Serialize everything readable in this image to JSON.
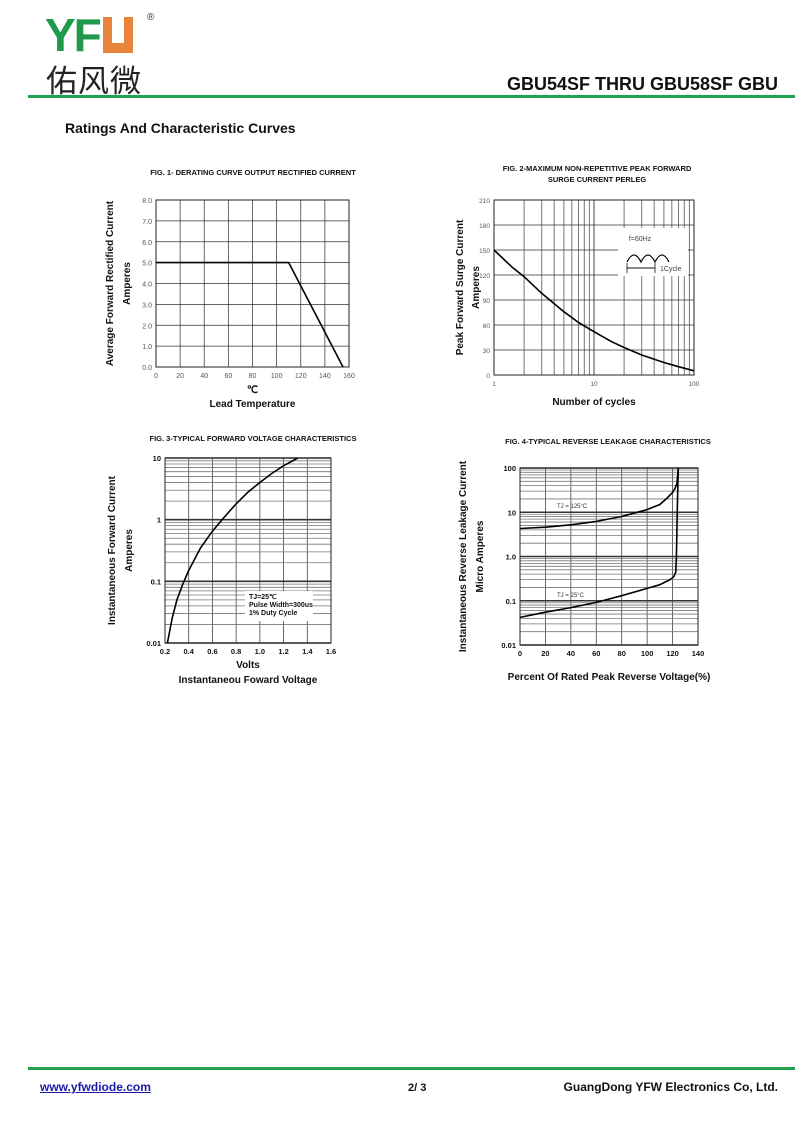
{
  "header": {
    "logo_latin": "YFW",
    "logo_registered": "®",
    "logo_chinese": "佑风微",
    "title": "GBU54SF THRU GBU58SF GBU"
  },
  "section_title": "Ratings And  Characteristic Curves",
  "footer": {
    "website": "www.yfwdiode.com",
    "page": "2/ 3",
    "company": "GuangDong YFW Electronics Co, Ltd."
  },
  "colors": {
    "brand_green": "#22a04f",
    "brand_orange": "#e8833a",
    "link": "#1a1aa8"
  },
  "chart_data": [
    {
      "type": "line",
      "title": [
        "FIG. 1- DERATING CURVE OUTPUT RECTIFIED CURRENT"
      ],
      "ylabel": [
        "Average Forward Rectified Current",
        "Amperes"
      ],
      "xlabel": [
        "℃",
        "Lead Temperature"
      ],
      "xscale": "linear",
      "yscale": "linear",
      "xlim": [
        0,
        160
      ],
      "ylim": [
        0,
        8
      ],
      "xticks": [
        "0",
        "20",
        "40",
        "60",
        "80",
        "100",
        "120",
        "140",
        "160"
      ],
      "yticks": [
        "0.0",
        "1.0",
        "2.0",
        "3.0",
        "4.0",
        "5.0",
        "6.0",
        "7.0",
        "8.0"
      ],
      "grid": true,
      "series": [
        {
          "name": "derating",
          "x": [
            0,
            110,
            155
          ],
          "y": [
            5,
            5,
            0
          ]
        }
      ],
      "annotations": []
    },
    {
      "type": "line",
      "title": [
        "FIG. 2-MAXIMUM NON-REPETITIVE PEAK FORWARD",
        "SURGE CURRENT PERLEG"
      ],
      "ylabel": [
        "Peak Forward Surge Current",
        "Amperes"
      ],
      "xlabel": [
        "Number of cycles"
      ],
      "xscale": "log",
      "yscale": "linear",
      "xlim": [
        1,
        100
      ],
      "ylim": [
        0,
        210
      ],
      "xticks": [
        "1",
        "10",
        "100"
      ],
      "yticks": [
        "0",
        "30",
        "60",
        "90",
        "120",
        "150",
        "180",
        "210"
      ],
      "grid": true,
      "series": [
        {
          "name": "surge",
          "x": [
            1,
            1.5,
            2,
            3,
            5,
            7,
            10,
            15,
            20,
            30,
            50,
            70,
            100
          ],
          "y": [
            150,
            130,
            118,
            98,
            76,
            63,
            52,
            40,
            33,
            24,
            15,
            10,
            5
          ]
        }
      ],
      "annotations": [
        "f=60Hz",
        "1Cycle"
      ]
    },
    {
      "type": "line",
      "title": [
        "FIG. 3-TYPICAL FORWARD VOLTAGE CHARACTERISTICS"
      ],
      "ylabel": [
        "Instantaneous Forward Current",
        "Amperes"
      ],
      "xlabel": [
        "Volts",
        "Instantaneou Foward Voltage"
      ],
      "xscale": "linear",
      "yscale": "log",
      "xlim": [
        0.2,
        1.6
      ],
      "ylim": [
        0.01,
        10
      ],
      "xticks": [
        "0.2",
        "0.4",
        "0.6",
        "0.8",
        "1.0",
        "1.2",
        "1.4",
        "1.6"
      ],
      "yticks": [
        "0.01",
        "0.1",
        "1",
        "10"
      ],
      "grid": true,
      "series": [
        {
          "name": "Tj=25C",
          "x": [
            0.22,
            0.26,
            0.3,
            0.35,
            0.4,
            0.5,
            0.6,
            0.7,
            0.8,
            0.9,
            1.0,
            1.1,
            1.2,
            1.32
          ],
          "y": [
            0.01,
            0.025,
            0.05,
            0.09,
            0.15,
            0.35,
            0.65,
            1.1,
            1.8,
            2.8,
            4.0,
            5.6,
            7.5,
            10
          ]
        }
      ],
      "annotations": [
        "TJ=25℃",
        "Pulse Width=300us",
        "1% Duty Cycle"
      ]
    },
    {
      "type": "line",
      "title": [
        "FIG. 4-TYPICAL REVERSE LEAKAGE CHARACTERISTICS"
      ],
      "ylabel": [
        "Instantaneous Reverse Leakage Current",
        "Micro Amperes"
      ],
      "xlabel": [
        "Percent Of Rated Peak Reverse Voltage(%)"
      ],
      "xscale": "linear",
      "yscale": "log",
      "xlim": [
        0,
        140
      ],
      "ylim": [
        0.01,
        100
      ],
      "xticks": [
        "0",
        "20",
        "40",
        "60",
        "80",
        "100",
        "120",
        "140"
      ],
      "yticks": [
        "0.01",
        "0.1",
        "1.0",
        "10",
        "100"
      ],
      "grid": true,
      "series": [
        {
          "name": "TJ = 125°C",
          "x": [
            0,
            20,
            40,
            60,
            80,
            100,
            110,
            115,
            120,
            122,
            123.5,
            124.5
          ],
          "y": [
            4.3,
            4.6,
            5.2,
            6.2,
            8,
            11.5,
            15,
            20,
            28,
            35,
            45,
            100
          ]
        },
        {
          "name": "TJ = 25°C",
          "x": [
            0,
            20,
            40,
            60,
            80,
            100,
            110,
            118,
            121,
            122.5,
            123,
            123.5,
            124,
            124.5
          ],
          "y": [
            0.042,
            0.055,
            0.07,
            0.092,
            0.13,
            0.19,
            0.23,
            0.3,
            0.35,
            0.45,
            1,
            5,
            30,
            100
          ]
        }
      ],
      "annotations": [
        "TJ = 125°C",
        "TJ = 25°C"
      ]
    }
  ]
}
